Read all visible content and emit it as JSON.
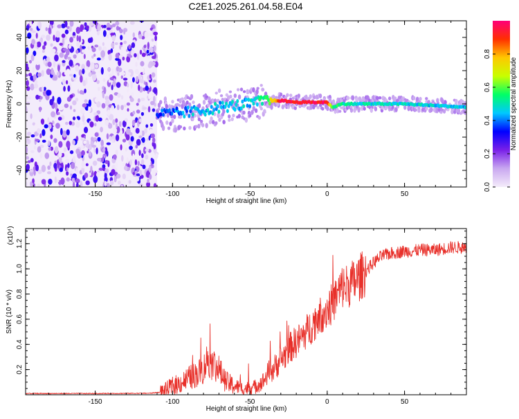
{
  "title": "C2E1.2025.261.04.58.E04",
  "colors": {
    "axis": "#000000",
    "snr_line": "#e8302a",
    "background": "#ffffff"
  },
  "chart_data": [
    {
      "type": "heatmap",
      "name": "spectrogram",
      "title": "C2E1.2025.261.04.58.E04",
      "xlabel": "Height of straight line (km)",
      "ylabel": "Frequency (Hz)",
      "xlim": [
        -195,
        90
      ],
      "ylim": [
        -50,
        50
      ],
      "x_ticks": [
        -150,
        -100,
        -50,
        0,
        50
      ],
      "x_tick_labels": [
        "-150",
        "-100",
        "-50",
        "0",
        "50"
      ],
      "y_ticks": [
        -40,
        -20,
        0,
        20,
        40
      ],
      "y_tick_labels": [
        "-40",
        "-20",
        "0",
        "20",
        "40"
      ],
      "noise_region_x": [
        -195,
        -110
      ],
      "signal_track": {
        "x": [
          -110,
          -100,
          -90,
          -80,
          -70,
          -60,
          -50,
          -40,
          -30,
          -20,
          -10,
          0,
          3,
          10,
          20,
          30,
          50,
          70,
          90
        ],
        "freq": [
          -6,
          -6,
          -5,
          -4,
          -2,
          -1,
          0,
          2,
          2,
          1,
          1,
          1,
          -2,
          0,
          0,
          0,
          0,
          -1,
          -2
        ],
        "amplitude": [
          0.35,
          0.38,
          0.42,
          0.45,
          0.45,
          0.45,
          0.45,
          0.55,
          0.95,
          0.95,
          0.95,
          0.95,
          0.6,
          0.5,
          0.5,
          0.48,
          0.48,
          0.46,
          0.45
        ]
      },
      "colorbar": {
        "label": "Normalized spectral amplitude",
        "range": [
          0,
          1
        ],
        "ticks": [
          0.0,
          0.2,
          0.4,
          0.6,
          0.8
        ],
        "tick_labels": [
          "0.0",
          "0.2",
          "0.4",
          "0.6",
          "0.8"
        ],
        "colors": [
          "#f4ecfa",
          "#c9a8f0",
          "#7a20e8",
          "#0000ff",
          "#00c8ff",
          "#00ff66",
          "#c8ff00",
          "#ffc800",
          "#ff3000",
          "#ff0078"
        ]
      }
    },
    {
      "type": "line",
      "name": "snr",
      "xlabel": "Height of straight line (km)",
      "ylabel": "SNR (10 * v/v)",
      "y_multiplier": "(x10⁴)",
      "xlim": [
        -195,
        90
      ],
      "ylim": [
        0,
        1.32
      ],
      "x_ticks": [
        -150,
        -100,
        -50,
        0,
        50
      ],
      "x_tick_labels": [
        "-150",
        "-100",
        "-50",
        "0",
        "50"
      ],
      "y_ticks": [
        0.2,
        0.4,
        0.6,
        0.8,
        1.0,
        1.2
      ],
      "y_tick_labels": [
        "0.2",
        "0.4",
        "0.6",
        "0.8",
        "1.0",
        "1.2"
      ],
      "series": [
        {
          "name": "SNR",
          "x": [
            -195,
            -150,
            -115,
            -108,
            -104,
            -100,
            -95,
            -90,
            -85,
            -80,
            -77,
            -75,
            -72,
            -70,
            -67,
            -65,
            -62,
            -60,
            -57,
            -55,
            -52,
            -50,
            -47,
            -45,
            -42,
            -40,
            -38,
            -35,
            -32,
            -30,
            -27,
            -25,
            -22,
            -20,
            -17,
            -15,
            -12,
            -10,
            -7,
            -5,
            -3,
            0,
            3,
            5,
            8,
            10,
            12,
            15,
            18,
            20,
            25,
            30,
            35,
            40,
            45,
            50,
            55,
            60,
            65,
            70,
            75,
            80,
            85,
            90
          ],
          "y": [
            0.01,
            0.01,
            0.012,
            0.02,
            0.04,
            0.07,
            0.09,
            0.13,
            0.16,
            0.2,
            0.3,
            0.25,
            0.23,
            0.2,
            0.13,
            0.1,
            0.08,
            0.07,
            0.06,
            0.05,
            0.05,
            0.06,
            0.06,
            0.08,
            0.1,
            0.13,
            0.18,
            0.2,
            0.25,
            0.28,
            0.32,
            0.36,
            0.4,
            0.42,
            0.45,
            0.48,
            0.52,
            0.55,
            0.6,
            0.62,
            0.65,
            0.68,
            0.72,
            0.76,
            0.82,
            0.86,
            0.86,
            0.88,
            0.9,
            0.92,
            0.98,
            1.05,
            1.1,
            1.12,
            1.13,
            1.14,
            1.14,
            1.15,
            1.15,
            1.15,
            1.16,
            1.17,
            1.17,
            1.17
          ]
        }
      ]
    }
  ]
}
